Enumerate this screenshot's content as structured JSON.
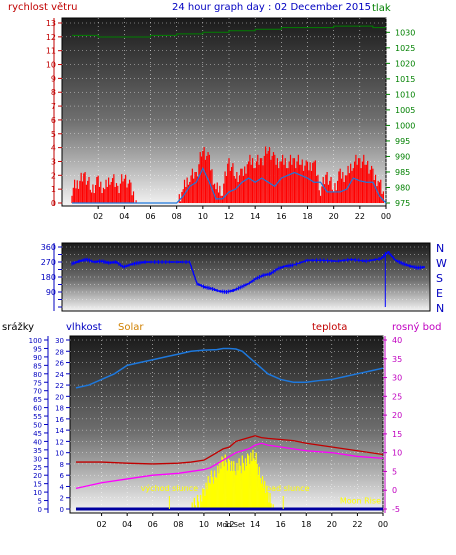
{
  "header": {
    "title": "24 hour graph day : 02 December 2015",
    "left_label": "rychlost větru",
    "right_label": "tlak"
  },
  "colors": {
    "wind_gust": "#ff0000",
    "wind_avg": "#1e78dc",
    "pressure": "#008000",
    "direction": "#0000ff",
    "humidity": "#1e78dc",
    "temperature": "#c00000",
    "dewpoint": "#ff00ff",
    "solar": "#ffff00",
    "rain": "#0000a0",
    "title": "#0000c0",
    "label_red": "#c00000",
    "label_green": "#008000",
    "label_blue": "#0000c0",
    "label_orange": "#d08000",
    "label_magenta": "#c000c0"
  },
  "chart_data": [
    {
      "type": "line",
      "panel": "wind_pressure",
      "title": "24 hour graph day : 02 December 2015",
      "x_tick_labels": [
        "02",
        "04",
        "06",
        "08",
        "10",
        "12",
        "14",
        "16",
        "18",
        "20",
        "22",
        "00"
      ],
      "left_axis": {
        "label": "rychlost větru",
        "ylim": [
          0,
          13
        ],
        "ticks": [
          0,
          1,
          2,
          3,
          4,
          5,
          6,
          7,
          8,
          9,
          10,
          11,
          12,
          13
        ]
      },
      "right_axis": {
        "label": "tlak",
        "ylim": [
          975,
          1033
        ],
        "ticks": [
          975,
          980,
          985,
          990,
          995,
          1000,
          1005,
          1010,
          1015,
          1020,
          1025,
          1030
        ]
      },
      "series": [
        {
          "name": "wind_gust",
          "x": [
            0,
            1,
            1.5,
            2,
            2.5,
            3,
            3.5,
            4,
            4.5,
            5,
            6,
            7,
            7.5,
            8,
            8.5,
            9,
            9.5,
            10,
            10.5,
            11,
            11.5,
            12,
            12.5,
            13,
            13.5,
            14,
            14.5,
            15,
            15.5,
            16,
            16.5,
            17,
            17.5,
            18,
            18.5,
            19,
            19.5,
            20,
            20.5,
            21,
            21.5,
            22,
            22.5,
            23,
            23.5,
            24
          ],
          "values": [
            1,
            2,
            1,
            1.5,
            1,
            2,
            1,
            2,
            1,
            0,
            0,
            0,
            0,
            0,
            1,
            2,
            2,
            4,
            3,
            1,
            1,
            3,
            2,
            2,
            3,
            3,
            3,
            4,
            3,
            3,
            3,
            3,
            3,
            2.5,
            3,
            1,
            2,
            1,
            2,
            2,
            3,
            3,
            3,
            2,
            1.5,
            0
          ]
        },
        {
          "name": "wind_avg",
          "x": [
            0,
            2,
            4,
            6,
            7.5,
            8,
            8.5,
            9,
            9.5,
            10,
            10.5,
            11,
            11.5,
            12,
            12.5,
            13,
            13.5,
            14,
            14.5,
            15,
            15.5,
            16,
            16.5,
            17,
            17.5,
            18,
            18.5,
            19,
            19.5,
            20,
            20.5,
            21,
            21.5,
            22,
            22.5,
            23,
            23.5,
            24
          ],
          "values": [
            0,
            0,
            0,
            0,
            0,
            0,
            0.5,
            1.2,
            1.5,
            2.5,
            1.5,
            0.3,
            0.3,
            0.8,
            1,
            1.5,
            1.8,
            1.5,
            1.8,
            1.5,
            1.2,
            1.8,
            2,
            2.2,
            2,
            1.8,
            1.5,
            1.5,
            0.8,
            0.8,
            0.8,
            1,
            1.8,
            1.6,
            1.5,
            1.5,
            0.5,
            0
          ]
        },
        {
          "name": "pressure",
          "x": [
            0,
            2,
            4,
            6,
            8,
            10,
            12,
            14,
            16,
            18,
            20,
            22,
            23,
            24
          ],
          "values": [
            1029,
            1028.5,
            1028.5,
            1029,
            1029.5,
            1030,
            1030.5,
            1031,
            1031.5,
            1031.5,
            1032,
            1032,
            1031.5,
            1031.5
          ]
        }
      ]
    },
    {
      "type": "line",
      "panel": "wind_direction",
      "x_tick_labels": [],
      "left_axis": {
        "ylim": [
          0,
          360
        ],
        "ticks": [
          0,
          45,
          90,
          135,
          180,
          225,
          270,
          315,
          360
        ],
        "tick_labels": [
          "",
          "",
          "90",
          "",
          "180",
          "",
          "270",
          "",
          "360"
        ]
      },
      "right_axis": {
        "tick_labels": [
          "N",
          "W",
          "S",
          "E",
          "N"
        ],
        "tick_values": [
          360,
          270,
          180,
          90,
          0
        ]
      },
      "series": [
        {
          "name": "direction",
          "x": [
            0,
            0.5,
            1,
            1.5,
            2,
            2.5,
            3,
            3.5,
            4,
            4.5,
            5,
            6,
            7,
            8,
            8.5,
            9,
            9.5,
            10,
            10.5,
            11,
            11.5,
            12,
            12.5,
            13,
            13.5,
            14,
            14.5,
            15,
            16,
            17,
            18,
            19,
            20,
            21,
            21.5,
            22,
            22.5,
            23,
            23.5,
            24
          ],
          "values": [
            260,
            275,
            285,
            270,
            275,
            265,
            270,
            240,
            255,
            265,
            270,
            270,
            270,
            270,
            140,
            120,
            110,
            95,
            90,
            100,
            120,
            140,
            170,
            190,
            200,
            230,
            245,
            250,
            280,
            280,
            275,
            285,
            275,
            290,
            330,
            280,
            260,
            245,
            235,
            240
          ]
        }
      ]
    },
    {
      "type": "line",
      "panel": "humidity_temperature",
      "x_tick_labels": [
        "02",
        "04",
        "06",
        "08",
        "10",
        "12",
        "14",
        "16",
        "18",
        "20",
        "22",
        "00"
      ],
      "top_labels": [
        "srážky",
        "vlhkost",
        "Solar",
        "teplota",
        "rosný bod"
      ],
      "annotations": [
        "východ slunce",
        "západ slunce",
        "Moon Rise",
        "Mod Set"
      ],
      "left_axis_rain": {
        "label": "srážky",
        "ylim": [
          0,
          100
        ],
        "ticks": [
          0,
          5,
          10,
          15,
          20,
          25,
          30,
          35,
          40,
          45,
          50,
          55,
          60,
          65,
          70,
          75,
          80,
          85,
          90,
          95,
          100
        ]
      },
      "left_axis_humidity": {
        "label": "vlhkost",
        "ylim": [
          0,
          30
        ],
        "ticks": [
          0,
          2,
          4,
          6,
          8,
          10,
          12,
          14,
          16,
          18,
          20,
          22,
          24,
          26,
          28,
          30
        ]
      },
      "right_axis": {
        "label": "teplota",
        "ylim": [
          -5,
          40
        ],
        "ticks": [
          -5,
          0,
          5,
          10,
          15,
          20,
          25,
          30,
          35,
          40
        ]
      },
      "series": [
        {
          "name": "humidity",
          "x": [
            0,
            1,
            2,
            3,
            4,
            5,
            6,
            7,
            8,
            9,
            10,
            11,
            11.5,
            12,
            12.5,
            13,
            14,
            15,
            16,
            17,
            18,
            19,
            20,
            21,
            22,
            23,
            24
          ],
          "values": [
            21.5,
            22,
            23,
            24,
            25.5,
            26,
            26.5,
            27,
            27.5,
            28,
            28.2,
            28.3,
            28.5,
            28.5,
            28.4,
            28,
            26,
            24,
            23,
            22.5,
            22.5,
            22.8,
            23,
            23.5,
            24,
            24.5,
            25
          ]
        },
        {
          "name": "temperature",
          "x": [
            0,
            2,
            4,
            6,
            8,
            9,
            10,
            10.5,
            11,
            11.5,
            12,
            12.5,
            13,
            13.5,
            14,
            14.5,
            15,
            16,
            17,
            18,
            20,
            22,
            24
          ],
          "values": [
            7.5,
            7.5,
            7.2,
            7.0,
            7.2,
            7.5,
            8,
            9,
            10,
            11,
            11.5,
            13,
            13.5,
            14,
            14.5,
            14,
            13.8,
            13.5,
            13.2,
            12.5,
            11.5,
            10.5,
            9.5
          ]
        },
        {
          "name": "dewpoint",
          "x": [
            0,
            2,
            4,
            6,
            8,
            9,
            10,
            10.5,
            11,
            11.5,
            12,
            12.5,
            13,
            13.5,
            14,
            14.5,
            15,
            16,
            17,
            18,
            20,
            22,
            24
          ],
          "values": [
            0.5,
            2,
            3,
            4,
            4.5,
            5,
            5.5,
            6,
            7,
            8,
            9,
            10,
            10.5,
            11,
            12,
            12.5,
            12,
            11.5,
            11,
            10.5,
            10,
            9,
            8.5
          ]
        },
        {
          "name": "solar",
          "x": [
            0,
            8,
            8.5,
            9,
            9.5,
            10,
            10.5,
            11,
            11.5,
            12,
            12.5,
            13,
            13.5,
            14,
            14.5,
            15,
            15.5,
            16,
            24
          ],
          "values": [
            0,
            0,
            0,
            0,
            1,
            3,
            5,
            7,
            8,
            8.5,
            7,
            8,
            9,
            9,
            6,
            2,
            0,
            0,
            0
          ]
        },
        {
          "name": "rain",
          "x": [
            0,
            24
          ],
          "values": [
            0,
            0
          ]
        }
      ]
    }
  ]
}
